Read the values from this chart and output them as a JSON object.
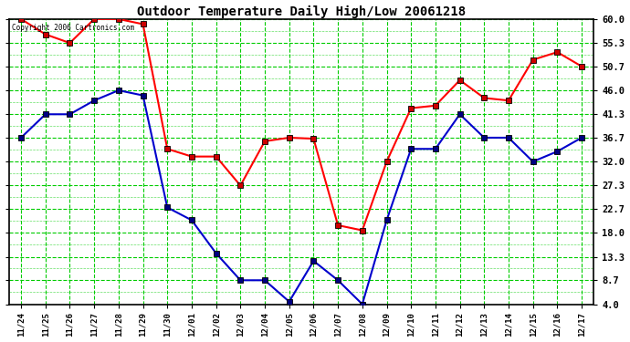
{
  "title": "Outdoor Temperature Daily High/Low 20061218",
  "copyright": "Copyright 2006 Cartronics.com",
  "x_labels": [
    "11/24",
    "11/25",
    "11/26",
    "11/27",
    "11/28",
    "11/29",
    "11/30",
    "12/01",
    "12/02",
    "12/03",
    "12/04",
    "12/05",
    "12/06",
    "12/07",
    "12/08",
    "12/09",
    "12/10",
    "12/11",
    "12/12",
    "12/13",
    "12/14",
    "12/15",
    "12/16",
    "12/17"
  ],
  "high_temps": [
    60.0,
    57.0,
    55.3,
    60.0,
    60.0,
    59.0,
    34.5,
    33.0,
    33.0,
    27.3,
    36.0,
    36.7,
    36.5,
    19.5,
    18.5,
    32.0,
    42.5,
    43.0,
    48.0,
    44.5,
    44.0,
    52.0,
    53.5,
    50.7
  ],
  "low_temps": [
    36.7,
    41.3,
    41.3,
    44.0,
    46.0,
    45.0,
    23.0,
    20.5,
    14.0,
    8.7,
    8.7,
    4.5,
    12.5,
    8.7,
    4.0,
    20.5,
    34.5,
    34.5,
    41.3,
    36.7,
    36.7,
    32.0,
    34.0,
    36.7
  ],
  "high_color": "#ff0000",
  "low_color": "#0000cc",
  "marker_color_high": "#cc0000",
  "marker_color_low": "#000080",
  "grid_color": "#00cc00",
  "grid_minor_color": "#00aa00",
  "bg_color": "#ffffff",
  "plot_bg": "#ffffff",
  "y_ticks": [
    4.0,
    8.7,
    13.3,
    18.0,
    22.7,
    27.3,
    32.0,
    36.7,
    41.3,
    46.0,
    50.7,
    55.3,
    60.0
  ],
  "y_min": 4.0,
  "y_max": 60.0
}
